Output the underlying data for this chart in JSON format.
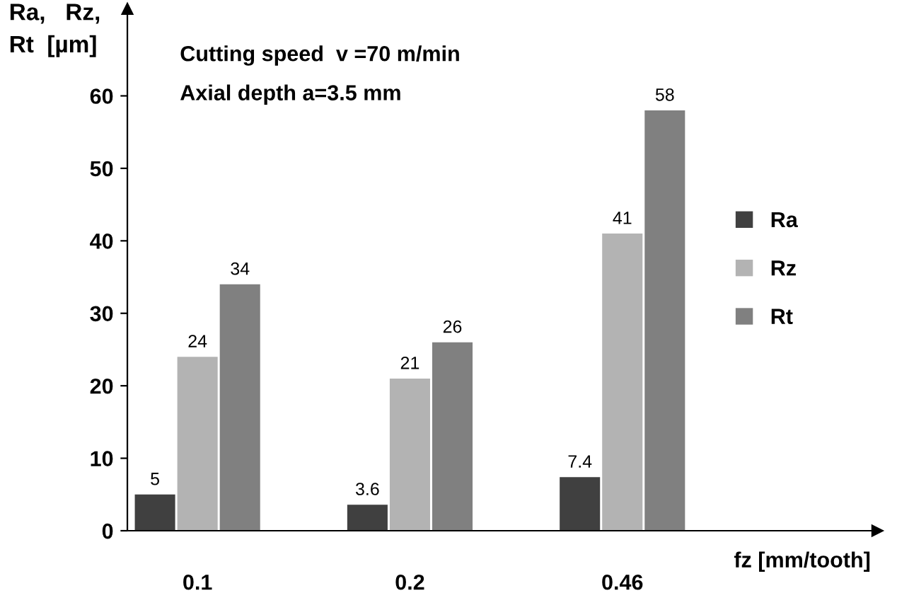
{
  "chart_data": {
    "type": "bar",
    "ylabel": "Ra,   Rz,\nRt  [µm]",
    "xlabel": "fz [mm/tooth]",
    "annotations": [
      "Cutting speed  v =70 m/min",
      "Axial depth a=3.5 mm"
    ],
    "categories": [
      "0.1",
      "0.2",
      "0.46"
    ],
    "series": [
      {
        "name": "Ra",
        "color": "#404040",
        "values": [
          5,
          3.6,
          7.4
        ]
      },
      {
        "name": "Rz",
        "color": "#b3b3b3",
        "values": [
          24,
          21,
          41
        ]
      },
      {
        "name": "Rt",
        "color": "#808080",
        "values": [
          34,
          26,
          58
        ]
      }
    ],
    "ylim": [
      0,
      72
    ],
    "yticks": [
      0,
      10,
      20,
      30,
      40,
      50,
      60
    ],
    "data_labels": true,
    "grid": false,
    "legend": "right"
  }
}
